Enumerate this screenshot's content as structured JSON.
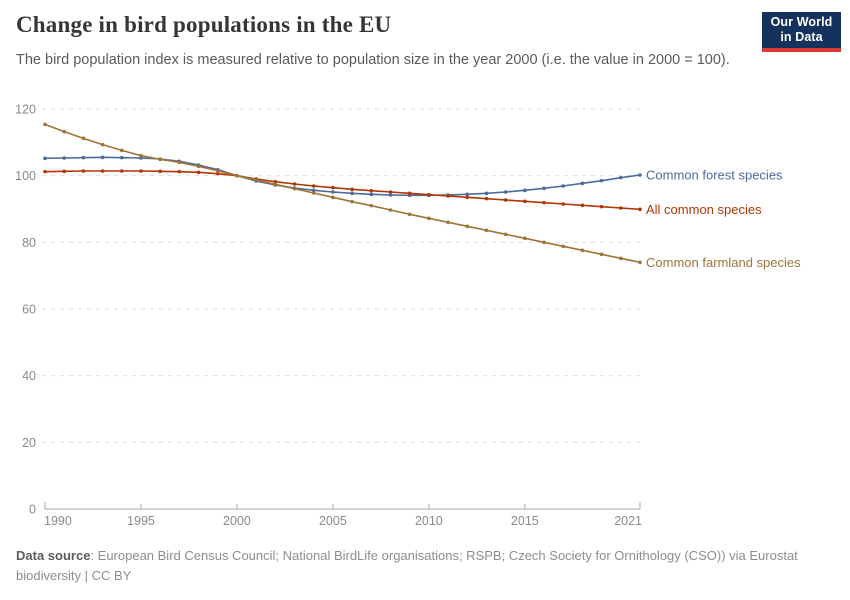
{
  "header": {
    "logo": {
      "line1": "Our World",
      "line2": "in Data",
      "bg": "#14325C",
      "accent": "#DC3A34"
    }
  },
  "chart_data": {
    "type": "line",
    "title": "Change in bird populations in the EU",
    "subtitle": "The bird population index is measured relative to population size in the year 2000 (i.e. the value in 2000 = 100).",
    "x": [
      1990,
      1991,
      1992,
      1993,
      1994,
      1995,
      1996,
      1997,
      1998,
      1999,
      2000,
      2001,
      2002,
      2003,
      2004,
      2005,
      2006,
      2007,
      2008,
      2009,
      2010,
      2011,
      2012,
      2013,
      2014,
      2015,
      2016,
      2017,
      2018,
      2019,
      2020,
      2021
    ],
    "series": [
      {
        "name": "Common forest species",
        "color": "#4C6A9C",
        "values": [
          105.2,
          105.3,
          105.4,
          105.5,
          105.4,
          105.3,
          105.0,
          104.3,
          103.2,
          101.8,
          100.0,
          98.4,
          97.2,
          96.3,
          95.6,
          95.1,
          94.7,
          94.4,
          94.2,
          94.1,
          94.1,
          94.2,
          94.4,
          94.7,
          95.1,
          95.6,
          96.2,
          96.9,
          97.7,
          98.5,
          99.4,
          100.2
        ]
      },
      {
        "name": "All common species",
        "color": "#B13507",
        "values": [
          101.2,
          101.3,
          101.4,
          101.4,
          101.4,
          101.4,
          101.3,
          101.2,
          101.0,
          100.6,
          100.0,
          99.0,
          98.2,
          97.5,
          96.9,
          96.4,
          95.9,
          95.5,
          95.1,
          94.7,
          94.3,
          93.9,
          93.5,
          93.1,
          92.7,
          92.3,
          91.9,
          91.5,
          91.1,
          90.7,
          90.3,
          89.9
        ]
      },
      {
        "name": "Common farmland species",
        "color": "#9E7438",
        "values": [
          115.4,
          113.2,
          111.2,
          109.3,
          107.6,
          106.0,
          104.9,
          104.0,
          102.8,
          101.5,
          100.0,
          98.7,
          97.4,
          96.1,
          94.8,
          93.5,
          92.2,
          91.0,
          89.7,
          88.4,
          87.2,
          86.0,
          84.8,
          83.6,
          82.4,
          81.2,
          80.0,
          78.8,
          77.6,
          76.4,
          75.2,
          74.0
        ]
      }
    ],
    "xlim": [
      1990,
      2021
    ],
    "ylim": [
      0,
      120
    ],
    "yticks": [
      0,
      20,
      40,
      60,
      80,
      100,
      120
    ],
    "xticks": [
      1990,
      1995,
      2000,
      2005,
      2010,
      2015,
      2021
    ],
    "grid": "horizontal-dashed",
    "legend_position": "line-end-labels",
    "axis_text_color": "#8a8a8a",
    "grid_color": "#dedede",
    "axis_line_color": "#a8a8a8"
  },
  "footer": {
    "label": "Data source",
    "text": ": European Bird Census Council; National BirdLife organisations; RSPB; Czech Society for Ornithology (CSO)) via Eurostat biodiversity | CC BY"
  }
}
